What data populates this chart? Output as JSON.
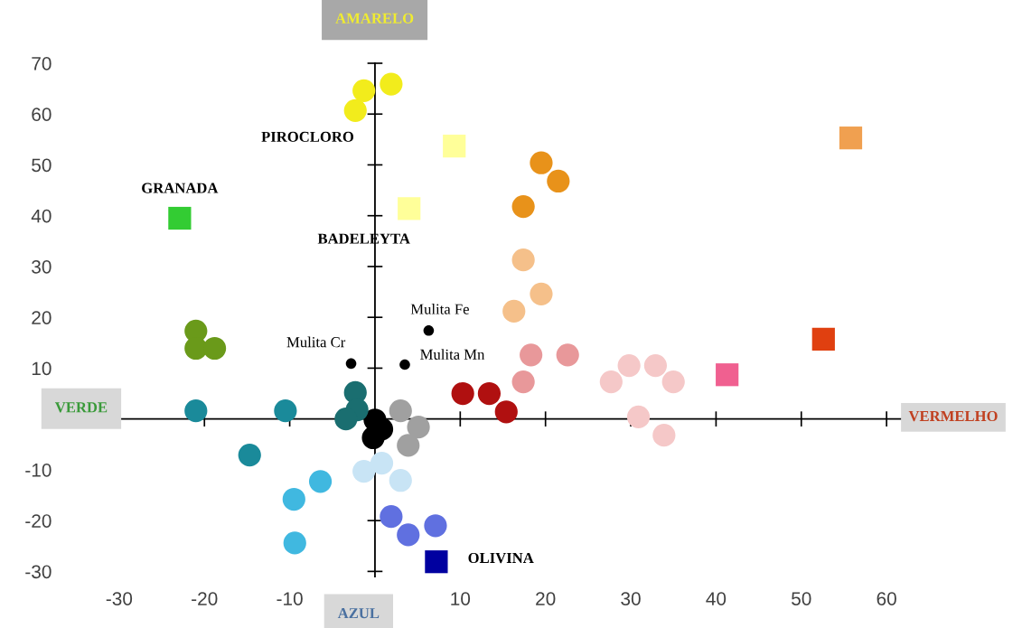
{
  "chart_data": {
    "type": "scatter",
    "xlim": [
      -32,
      62
    ],
    "ylim": [
      -31,
      70
    ],
    "xticks": [
      -30,
      -20,
      -10,
      10,
      20,
      30,
      40,
      50,
      60
    ],
    "yticks": [
      -30,
      -20,
      -10,
      10,
      20,
      30,
      40,
      50,
      60,
      70
    ],
    "grid": false,
    "series": [
      {
        "name": "PIROCLORO",
        "color": "#f2ec1c",
        "marker": "circle",
        "x": [
          -2.3,
          -1.3,
          1.9
        ],
        "values": [
          60.7,
          64.6,
          65.9
        ]
      },
      {
        "name": "BADELEYTA",
        "color": "#ffff99",
        "marker": "square",
        "x": [
          4.0,
          9.3
        ],
        "values": [
          41.4,
          53.7
        ]
      },
      {
        "name": "GRANADA",
        "color": "#33cc33",
        "marker": "square",
        "x": [
          -22.9
        ],
        "values": [
          39.5
        ]
      },
      {
        "color": "#e8921a",
        "marker": "circle",
        "x": [
          19.5,
          21.5,
          17.4
        ],
        "values": [
          50.4,
          46.8,
          41.8
        ]
      },
      {
        "color": "#f5c08a",
        "marker": "circle",
        "x": [
          17.4,
          19.5,
          16.3
        ],
        "values": [
          31.3,
          24.6,
          21.2
        ]
      },
      {
        "color": "#f0a050",
        "marker": "square",
        "x": [
          55.8
        ],
        "values": [
          55.3
        ]
      },
      {
        "color": "#e04010",
        "marker": "square",
        "x": [
          52.6
        ],
        "values": [
          15.7
        ]
      },
      {
        "color": "#f06090",
        "marker": "square",
        "x": [
          41.3
        ],
        "values": [
          8.7
        ]
      },
      {
        "color": "#e8989a",
        "marker": "circle",
        "x": [
          18.3,
          22.6,
          17.4
        ],
        "values": [
          12.6,
          12.6,
          7.3
        ]
      },
      {
        "color": "#f5c8c8",
        "marker": "circle",
        "x": [
          29.8,
          32.9,
          27.7,
          35.0,
          30.9,
          33.9
        ],
        "values": [
          10.5,
          10.5,
          7.3,
          7.3,
          0.4,
          -3.2
        ]
      },
      {
        "color": "#b01010",
        "marker": "circle",
        "x": [
          10.3,
          13.4,
          15.4
        ],
        "values": [
          5.0,
          5.0,
          1.4
        ]
      },
      {
        "name": "Mulita Fe",
        "color": "#000000",
        "marker": "dot",
        "x": [
          6.3
        ],
        "values": [
          17.4
        ]
      },
      {
        "name": "Mulita Mn",
        "color": "#000000",
        "marker": "dot",
        "x": [
          3.5
        ],
        "values": [
          10.7
        ]
      },
      {
        "name": "Mulita Cr",
        "color": "#000000",
        "marker": "dot",
        "x": [
          -2.8
        ],
        "values": [
          10.9
        ]
      },
      {
        "color": "#a0a0a0",
        "marker": "circle",
        "x": [
          3.0,
          5.1,
          3.9
        ],
        "values": [
          1.6,
          -1.6,
          -5.2
        ]
      },
      {
        "color": "#000000",
        "marker": "circle",
        "x": [
          0.0,
          0.8,
          -0.2
        ],
        "values": [
          -0.2,
          -2.0,
          -3.7
        ]
      },
      {
        "color": "#c8e4f5",
        "marker": "circle",
        "x": [
          -1.3,
          0.8,
          3.0
        ],
        "values": [
          -10.3,
          -8.7,
          -12.1
        ]
      },
      {
        "color": "#6070e0",
        "marker": "circle",
        "x": [
          1.9,
          3.9,
          7.1
        ],
        "values": [
          -19.2,
          -22.8,
          -21.0
        ]
      },
      {
        "name": "OLIVINA",
        "color": "#0000a0",
        "marker": "square",
        "x": [
          7.2
        ],
        "values": [
          -28.1
        ]
      },
      {
        "color": "#1a8a9a",
        "marker": "circle",
        "x": [
          -21.0,
          -10.5,
          -14.7
        ],
        "values": [
          1.6,
          1.6,
          -7.1
        ]
      },
      {
        "color": "#1a6e70",
        "marker": "circle",
        "x": [
          -2.3,
          -2.1,
          -3.4
        ],
        "values": [
          5.2,
          1.8,
          0.0
        ]
      },
      {
        "color": "#40b8e0",
        "marker": "circle",
        "x": [
          -6.4,
          -9.5,
          -9.4
        ],
        "values": [
          -12.3,
          -15.8,
          -24.4
        ]
      },
      {
        "color": "#6a9a1a",
        "marker": "circle",
        "x": [
          -21.0,
          -21.0,
          -18.8
        ],
        "values": [
          17.3,
          13.9,
          13.9
        ]
      }
    ],
    "annotations": [
      "AMARELO",
      "VERDE",
      "VERMELHO",
      "AZUL"
    ]
  }
}
